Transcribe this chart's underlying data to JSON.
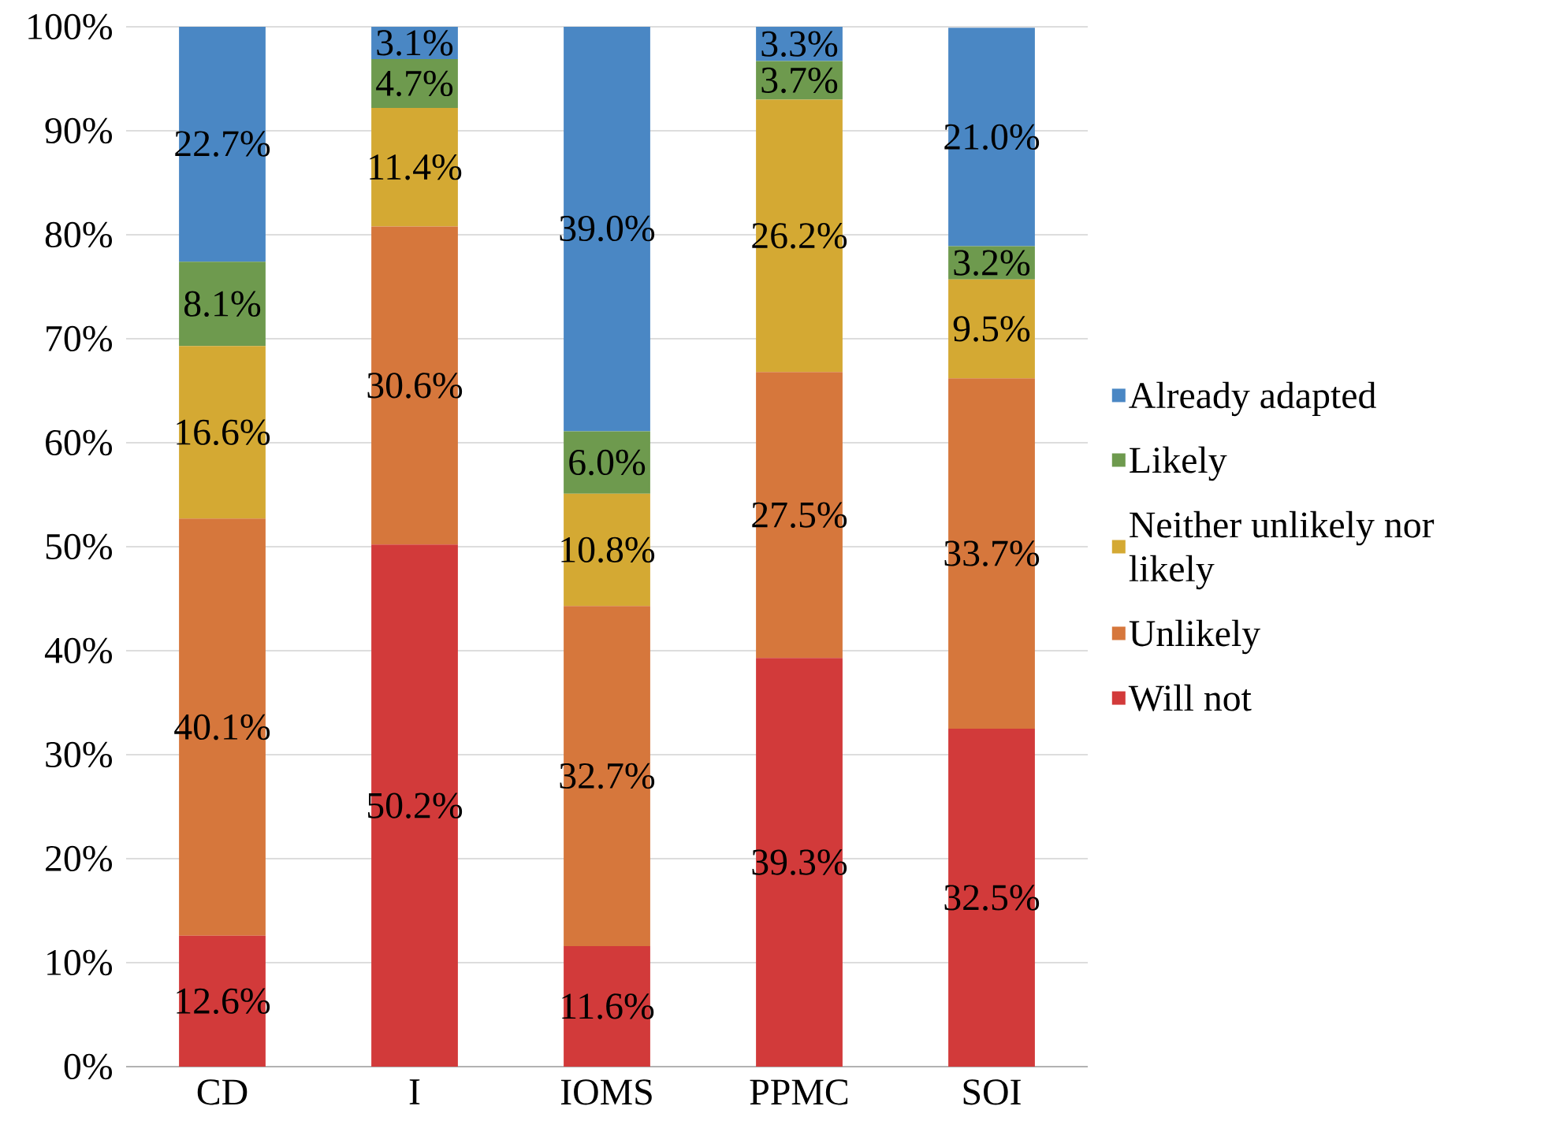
{
  "chart_data": {
    "type": "bar",
    "stacked": true,
    "categories": [
      "CD",
      "I",
      "IOMS",
      "PPMC",
      "SOI"
    ],
    "series": [
      {
        "name": "Will not",
        "color": "#d23a3a",
        "values": [
          12.6,
          50.2,
          11.6,
          39.3,
          32.5
        ],
        "value_labels": [
          "12.6%",
          "50.2%",
          "11.6%",
          "39.3%",
          "32.5%"
        ]
      },
      {
        "name": "Unlikely",
        "color": "#d6773c",
        "values": [
          40.1,
          30.6,
          32.7,
          27.5,
          33.7
        ],
        "value_labels": [
          "40.1%",
          "30.6%",
          "32.7%",
          "27.5%",
          "33.7%"
        ]
      },
      {
        "name": "Neither unlikely nor likely",
        "color": "#d4a933",
        "values": [
          16.6,
          11.4,
          10.8,
          26.2,
          9.5
        ],
        "value_labels": [
          "16.6%",
          "11.4%",
          "10.8%",
          "26.2%",
          "9.5%"
        ]
      },
      {
        "name": "Likely",
        "color": "#6e9a4e",
        "values": [
          8.1,
          4.7,
          6.0,
          3.7,
          3.2
        ],
        "value_labels": [
          "8.1%",
          "4.7%",
          "6.0%",
          "3.7%",
          "3.2%"
        ]
      },
      {
        "name": "Already adapted",
        "color": "#4a87c4",
        "values": [
          22.7,
          3.1,
          39.0,
          3.3,
          21.0
        ],
        "value_labels": [
          "22.7%",
          "3.1%",
          "39.0%",
          "3.3%",
          "21.0%"
        ]
      }
    ],
    "ylim": [
      0,
      100
    ],
    "yticks": [
      {
        "value": 0,
        "label": "0%"
      },
      {
        "value": 10,
        "label": "10%"
      },
      {
        "value": 20,
        "label": "20%"
      },
      {
        "value": 30,
        "label": "30%"
      },
      {
        "value": 40,
        "label": "40%"
      },
      {
        "value": 50,
        "label": "50%"
      },
      {
        "value": 60,
        "label": "60%"
      },
      {
        "value": 70,
        "label": "70%"
      },
      {
        "value": 80,
        "label": "80%"
      },
      {
        "value": 90,
        "label": "90%"
      },
      {
        "value": 100,
        "label": "100%"
      }
    ],
    "grid": "y",
    "legend": "right"
  }
}
